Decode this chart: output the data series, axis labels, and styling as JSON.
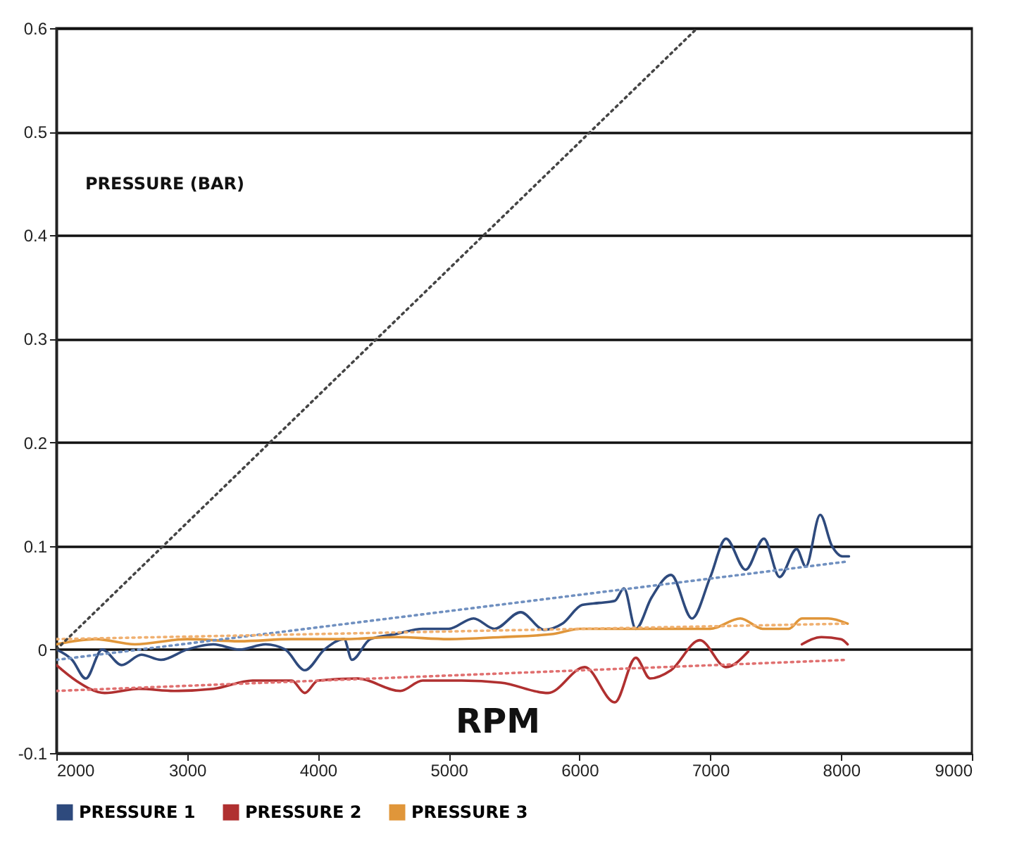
{
  "chart_data": {
    "type": "line",
    "xlabel": "RPM",
    "ylabel": "PRESSURE (BAR)",
    "xlim": [
      2000,
      9000
    ],
    "xticks": [
      2000,
      3000,
      4000,
      5000,
      6000,
      7000,
      8000,
      9000
    ],
    "ylim": [
      -0.1,
      0.6
    ],
    "yticks": [
      -0.1,
      0,
      0.1,
      0.2,
      0.3,
      0.4,
      0.5,
      0.6
    ],
    "grid": "y",
    "legend": "bottom",
    "marker": "none",
    "line_style": "solid",
    "series": [
      {
        "name": "PRESSURE 1",
        "color": "#2e4a7d",
        "x": [
          2000,
          2120,
          2225,
          2350,
          2500,
          2650,
          2800,
          3000,
          3200,
          3400,
          3600,
          3750,
          3900,
          4050,
          4200,
          4260,
          4400,
          4600,
          4800,
          5000,
          5190,
          5350,
          5550,
          5730,
          5870,
          6020,
          6150,
          6270,
          6340,
          6430,
          6550,
          6700,
          6860,
          7000,
          7120,
          7270,
          7410,
          7530,
          7660,
          7730,
          7840,
          7930,
          8010,
          8060
        ],
        "values": [
          0,
          -0.01,
          -0.028,
          0,
          -0.015,
          -0.005,
          -0.01,
          0,
          0.005,
          0,
          0.005,
          0,
          -0.02,
          0,
          0.01,
          -0.01,
          0.01,
          0.015,
          0.02,
          0.02,
          0.03,
          0.02,
          0.036,
          0.019,
          0.025,
          0.043,
          0.045,
          0.047,
          0.059,
          0.02,
          0.05,
          0.072,
          0.03,
          0.07,
          0.107,
          0.077,
          0.107,
          0.07,
          0.097,
          0.08,
          0.13,
          0.1,
          0.09,
          0.09
        ]
      },
      {
        "name": "PRESSURE 2",
        "color": "#b03030",
        "x": [
          2000,
          2150,
          2370,
          2630,
          2900,
          3200,
          3500,
          3800,
          3900,
          4000,
          4300,
          4630,
          4800,
          5100,
          5400,
          5760,
          6040,
          6270,
          6430,
          6540,
          6700,
          6920,
          7120,
          7290,
          7500,
          7700,
          7850,
          8000,
          8050
        ],
        "values": [
          -0.015,
          -0.03,
          -0.042,
          -0.038,
          -0.04,
          -0.038,
          -0.03,
          -0.03,
          -0.042,
          -0.03,
          -0.028,
          -0.04,
          -0.03,
          -0.03,
          -0.032,
          -0.042,
          -0.017,
          -0.051,
          -0.008,
          -0.028,
          -0.02,
          0.009,
          -0.017,
          -0.002,
          null,
          0.005,
          0.012,
          0.01,
          0.005
        ]
      },
      {
        "name": "PRESSURE 3",
        "color": "#e0963a",
        "x": [
          2000,
          2300,
          2600,
          3000,
          3400,
          3800,
          4200,
          4600,
          5000,
          5400,
          5800,
          6000,
          6400,
          6800,
          7000,
          7230,
          7400,
          7600,
          7700,
          7900,
          8050
        ],
        "values": [
          0.005,
          0.01,
          0.005,
          0.01,
          0.008,
          0.01,
          0.01,
          0.012,
          0.01,
          0.012,
          0.015,
          0.02,
          0.02,
          0.02,
          0.02,
          0.03,
          0.02,
          0.02,
          0.03,
          0.03,
          0.025
        ]
      },
      {
        "type": "line",
        "line_style": "dotted",
        "color": "#7090c0",
        "x": [
          2000,
          8050
        ],
        "values": [
          -0.01,
          0.085
        ]
      },
      {
        "type": "line",
        "line_style": "dotted",
        "color": "#e07070",
        "x": [
          2000,
          8050
        ],
        "values": [
          -0.04,
          -0.01
        ]
      },
      {
        "type": "line",
        "line_style": "dotted",
        "color": "#f0b070",
        "x": [
          2000,
          8050
        ],
        "values": [
          0.01,
          0.025
        ]
      },
      {
        "type": "line",
        "line_style": "dotted",
        "color": "#444444",
        "x": [
          2000,
          6900
        ],
        "values": [
          0,
          0.6
        ]
      }
    ]
  }
}
